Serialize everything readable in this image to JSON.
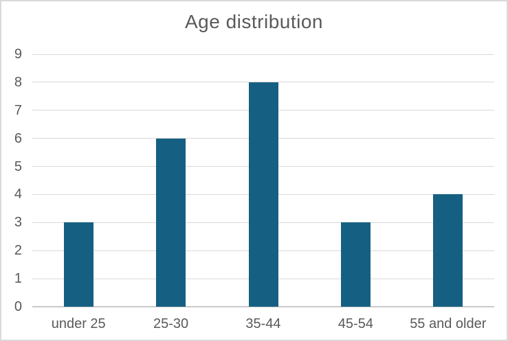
{
  "chart_data": {
    "type": "bar",
    "title": "Age distribution",
    "categories": [
      "under 25",
      "25-30",
      "35-44",
      "45-54",
      "55 and older"
    ],
    "values": [
      3,
      6,
      8,
      3,
      4
    ],
    "ylim": [
      0,
      9
    ],
    "yticks": [
      0,
      1,
      2,
      3,
      4,
      5,
      6,
      7,
      8,
      9
    ],
    "xlabel": "",
    "ylabel": "",
    "grid": "horizontal",
    "legend": "none",
    "colors": {
      "bar": "#156082",
      "text": "#595959",
      "gridline": "#D9D9D9",
      "axis_line": "#C9C9C9",
      "frame_border": "#D9D9D9",
      "background": "#FFFFFF"
    }
  }
}
